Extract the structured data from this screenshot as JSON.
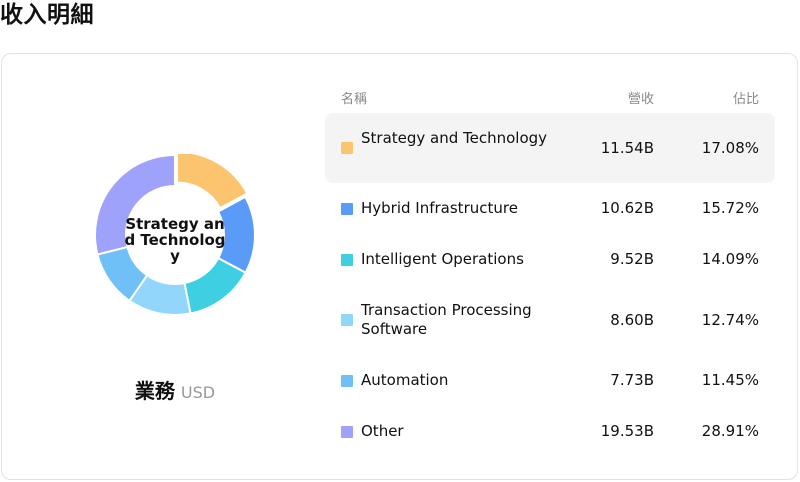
{
  "page": {
    "title": "收入明細"
  },
  "card": {
    "segment_label": "業務",
    "currency": "USD",
    "donut_center_label": "Strategy and Technology"
  },
  "table": {
    "headers": {
      "name": "名稱",
      "revenue": "營收",
      "share": "佔比"
    },
    "rows": [
      {
        "name": "Strategy and Technology",
        "revenue": "11.54B",
        "share": "17.08%",
        "color": "#fcc46e"
      },
      {
        "name": "Hybrid Infrastructure",
        "revenue": "10.62B",
        "share": "15.72%",
        "color": "#5b9bf8"
      },
      {
        "name": "Intelligent Operations",
        "revenue": "9.52B",
        "share": "14.09%",
        "color": "#3ecfe3"
      },
      {
        "name": "Transaction Processing Software",
        "revenue": "8.60B",
        "share": "12.74%",
        "color": "#92d7fb"
      },
      {
        "name": "Automation",
        "revenue": "7.73B",
        "share": "11.45%",
        "color": "#6fc0f6"
      },
      {
        "name": "Other",
        "revenue": "19.53B",
        "share": "28.91%",
        "color": "#9fa2fb"
      }
    ]
  },
  "chart_data": {
    "type": "pie",
    "categories": [
      "Strategy and Technology",
      "Hybrid Infrastructure",
      "Intelligent Operations",
      "Transaction Processing Software",
      "Automation",
      "Other"
    ],
    "values": [
      11.54,
      10.62,
      9.52,
      8.6,
      7.73,
      19.53
    ],
    "percentages": [
      17.08,
      15.72,
      14.09,
      12.74,
      11.45,
      28.91
    ],
    "unit": "USD",
    "colors": [
      "#fcc46e",
      "#5b9bf8",
      "#3ecfe3",
      "#92d7fb",
      "#6fc0f6",
      "#9fa2fb"
    ],
    "highlighted": "Strategy and Technology"
  }
}
